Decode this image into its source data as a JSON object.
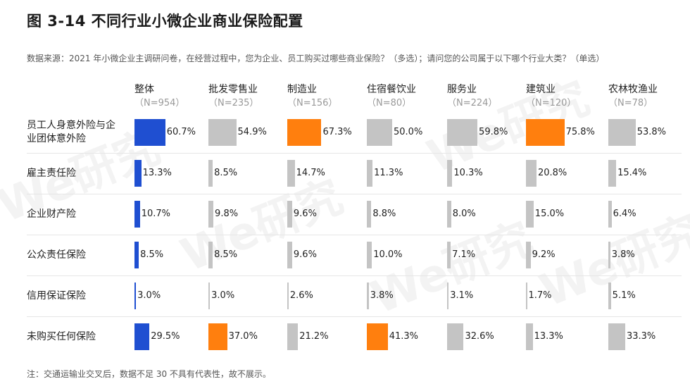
{
  "title": "图 3-14  不同行业小微企业商业保险配置",
  "source": "数据来源：2021 年小微企业主调研问卷，在经营过程中，您为企业、员工购买过哪些商业保险？（多选）；请问您的公司属于以下哪个行业大类？（单选）",
  "note": "注：交通运输业交叉后，数据不足 30 不具有代表性，故不展示。",
  "watermark": "We研究",
  "colors": {
    "overall": "#1f4fd1",
    "highlight": "#ff7f0e",
    "neutral": "#c4c4c4"
  },
  "chart_data": {
    "type": "bar",
    "columns": [
      {
        "name": "整体",
        "n": "（N=954）",
        "color_role": "overall"
      },
      {
        "name": "批发零售业",
        "n": "（N=235）",
        "color_role": "neutral"
      },
      {
        "name": "制造业",
        "n": "（N=156）",
        "color_role": "neutral"
      },
      {
        "name": "住宿餐饮业",
        "n": "（N=80）",
        "color_role": "neutral"
      },
      {
        "name": "服务业",
        "n": "（N=224）",
        "color_role": "neutral"
      },
      {
        "name": "建筑业",
        "n": "（N=120）",
        "color_role": "neutral"
      },
      {
        "name": "农林牧渔业",
        "n": "（N=78）",
        "color_role": "neutral"
      }
    ],
    "categories": [
      "员工人身意外险与企业团体意外险",
      "雇主责任险",
      "企业财产险",
      "公众责任保险",
      "信用保证保险",
      "未购买任何保险"
    ],
    "series": [
      {
        "name": "整体",
        "values": [
          60.7,
          13.3,
          10.7,
          8.5,
          3.0,
          29.5
        ],
        "labels": [
          "60.7%",
          "13.3%",
          "10.7%",
          "8.5%",
          "3.0%",
          "29.5%"
        ],
        "highlight": [
          false,
          false,
          false,
          false,
          false,
          false
        ]
      },
      {
        "name": "批发零售业",
        "values": [
          54.9,
          8.5,
          9.8,
          8.5,
          3.0,
          37.0
        ],
        "labels": [
          "54.9%",
          "8.5%",
          "9.8%",
          "8.5%",
          "3.0%",
          "37.0%"
        ],
        "highlight": [
          false,
          false,
          false,
          false,
          false,
          true
        ]
      },
      {
        "name": "制造业",
        "values": [
          67.3,
          14.7,
          9.6,
          9.6,
          2.6,
          21.2
        ],
        "labels": [
          "67.3%",
          "14.7%",
          "9.6%",
          "9.6%",
          "2.6%",
          "21.2%"
        ],
        "highlight": [
          true,
          false,
          false,
          false,
          false,
          false
        ]
      },
      {
        "name": "住宿餐饮业",
        "values": [
          50.0,
          11.3,
          8.8,
          10.0,
          3.8,
          41.3
        ],
        "labels": [
          "50.0%",
          "11.3%",
          "8.8%",
          "10.0%",
          "3.8%",
          "41.3%"
        ],
        "highlight": [
          false,
          false,
          false,
          false,
          false,
          true
        ]
      },
      {
        "name": "服务业",
        "values": [
          59.8,
          10.3,
          8.0,
          7.1,
          3.1,
          32.6
        ],
        "labels": [
          "59.8%",
          "10.3%",
          "8.0%",
          "7.1%",
          "3.1%",
          "32.6%"
        ],
        "highlight": [
          false,
          false,
          false,
          false,
          false,
          false
        ]
      },
      {
        "name": "建筑业",
        "values": [
          75.8,
          20.8,
          15.0,
          9.2,
          1.7,
          13.3
        ],
        "labels": [
          "75.8%",
          "20.8%",
          "15.0%",
          "9.2%",
          "1.7%",
          "13.3%"
        ],
        "highlight": [
          true,
          false,
          false,
          false,
          false,
          false
        ]
      },
      {
        "name": "农林牧渔业",
        "values": [
          53.8,
          15.4,
          6.4,
          3.8,
          5.1,
          33.3
        ],
        "labels": [
          "53.8%",
          "15.4%",
          "6.4%",
          "3.8%",
          "5.1%",
          "33.3%"
        ],
        "highlight": [
          false,
          false,
          false,
          false,
          false,
          false
        ]
      }
    ]
  }
}
